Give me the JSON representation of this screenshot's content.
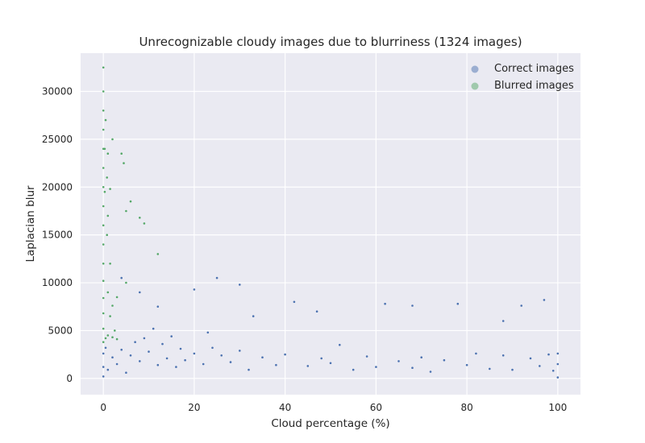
{
  "chart_data": {
    "type": "scatter",
    "title": "Unrecognizable cloudy images due to blurriness (1324 images)",
    "xlabel": "Cloud percentage (%)",
    "ylabel": "Laplacian blur",
    "xlim": [
      -5,
      105
    ],
    "ylim": [
      -1700,
      34000
    ],
    "xticks": [
      "0",
      "20",
      "40",
      "60",
      "80",
      "100"
    ],
    "yticks": [
      "0",
      "5000",
      "10000",
      "15000",
      "20000",
      "25000",
      "30000"
    ],
    "grid": true,
    "legend_position": "top-right",
    "background": "#EAEAF2",
    "series": [
      {
        "name": "Correct images",
        "color": "#4C72B0",
        "points": [
          [
            0,
            200
          ],
          [
            0,
            1200
          ],
          [
            0,
            2600
          ],
          [
            0.5,
            3200
          ],
          [
            1,
            900
          ],
          [
            2,
            2200
          ],
          [
            3,
            1500
          ],
          [
            4,
            3000
          ],
          [
            5,
            600
          ],
          [
            6,
            2400
          ],
          [
            7,
            3800
          ],
          [
            8,
            1800
          ],
          [
            9,
            4200
          ],
          [
            10,
            2800
          ],
          [
            11,
            5200
          ],
          [
            12,
            1400
          ],
          [
            13,
            3600
          ],
          [
            14,
            2100
          ],
          [
            15,
            4400
          ],
          [
            16,
            1200
          ],
          [
            17,
            3100
          ],
          [
            18,
            1900
          ],
          [
            20,
            2600
          ],
          [
            22,
            1500
          ],
          [
            23,
            4800
          ],
          [
            24,
            3200
          ],
          [
            25,
            10500
          ],
          [
            26,
            2400
          ],
          [
            28,
            1700
          ],
          [
            30,
            2900
          ],
          [
            32,
            900
          ],
          [
            35,
            2200
          ],
          [
            38,
            1400
          ],
          [
            40,
            2500
          ],
          [
            42,
            8000
          ],
          [
            45,
            1300
          ],
          [
            48,
            2100
          ],
          [
            50,
            1600
          ],
          [
            52,
            3500
          ],
          [
            55,
            900
          ],
          [
            58,
            2300
          ],
          [
            60,
            1200
          ],
          [
            62,
            7800
          ],
          [
            65,
            1800
          ],
          [
            68,
            1100
          ],
          [
            70,
            2200
          ],
          [
            72,
            700
          ],
          [
            75,
            1900
          ],
          [
            78,
            7800
          ],
          [
            80,
            1400
          ],
          [
            82,
            2600
          ],
          [
            85,
            1000
          ],
          [
            88,
            2400
          ],
          [
            90,
            900
          ],
          [
            92,
            7600
          ],
          [
            94,
            2100
          ],
          [
            96,
            1300
          ],
          [
            98,
            2500
          ],
          [
            99,
            800
          ],
          [
            100,
            100
          ],
          [
            100,
            1500
          ],
          [
            100,
            2600
          ],
          [
            4,
            10500
          ],
          [
            8,
            9000
          ],
          [
            12,
            7500
          ],
          [
            20,
            9300
          ],
          [
            30,
            9800
          ],
          [
            33,
            6500
          ],
          [
            47,
            7000
          ],
          [
            68,
            7600
          ],
          [
            88,
            6000
          ],
          [
            97,
            8200
          ]
        ]
      },
      {
        "name": "Blurred images",
        "color": "#55A868",
        "points": [
          [
            0,
            3800
          ],
          [
            0,
            5200
          ],
          [
            0,
            6800
          ],
          [
            0,
            8400
          ],
          [
            0,
            10200
          ],
          [
            0,
            12000
          ],
          [
            0,
            14000
          ],
          [
            0,
            16000
          ],
          [
            0,
            18000
          ],
          [
            0,
            20000
          ],
          [
            0,
            22000
          ],
          [
            0,
            24000
          ],
          [
            0,
            26000
          ],
          [
            0,
            28000
          ],
          [
            0,
            30000
          ],
          [
            0,
            32500
          ],
          [
            0.3,
            19500
          ],
          [
            0.3,
            24000
          ],
          [
            0.5,
            4200
          ],
          [
            0.5,
            27000
          ],
          [
            0.8,
            15000
          ],
          [
            0.8,
            21000
          ],
          [
            1,
            4500
          ],
          [
            1,
            9000
          ],
          [
            1,
            17000
          ],
          [
            1,
            23500
          ],
          [
            1.5,
            6500
          ],
          [
            1.5,
            12000
          ],
          [
            1.5,
            19800
          ],
          [
            2,
            4300
          ],
          [
            2,
            7600
          ],
          [
            2,
            25000
          ],
          [
            2.5,
            5000
          ],
          [
            3,
            8500
          ],
          [
            3,
            4100
          ],
          [
            4,
            23500
          ],
          [
            4.5,
            22500
          ],
          [
            5,
            17500
          ],
          [
            5,
            10000
          ],
          [
            6,
            18500
          ],
          [
            8,
            16800
          ],
          [
            9,
            16200
          ],
          [
            12,
            13000
          ]
        ]
      }
    ]
  }
}
